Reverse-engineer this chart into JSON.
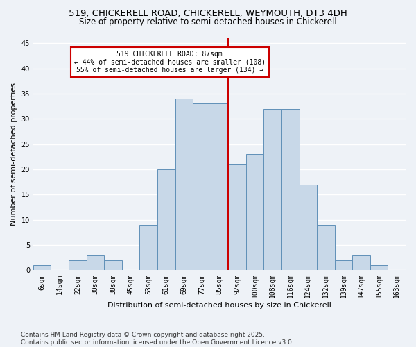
{
  "title1": "519, CHICKERELL ROAD, CHICKERELL, WEYMOUTH, DT3 4DH",
  "title2": "Size of property relative to semi-detached houses in Chickerell",
  "xlabel": "Distribution of semi-detached houses by size in Chickerell",
  "ylabel": "Number of semi-detached properties",
  "bins": [
    "6sqm",
    "14sqm",
    "22sqm",
    "30sqm",
    "38sqm",
    "45sqm",
    "53sqm",
    "61sqm",
    "69sqm",
    "77sqm",
    "85sqm",
    "92sqm",
    "100sqm",
    "108sqm",
    "116sqm",
    "124sqm",
    "132sqm",
    "139sqm",
    "147sqm",
    "155sqm",
    "163sqm"
  ],
  "values": [
    1,
    0,
    2,
    3,
    2,
    0,
    9,
    20,
    34,
    33,
    33,
    21,
    23,
    32,
    32,
    17,
    9,
    2,
    3,
    1,
    0
  ],
  "bar_color": "#c8d8e8",
  "bar_edge_color": "#6090b8",
  "vline_color": "#cc0000",
  "annotation_title": "519 CHICKERELL ROAD: 87sqm",
  "annotation_line1": "← 44% of semi-detached houses are smaller (108)",
  "annotation_line2": "55% of semi-detached houses are larger (134) →",
  "annotation_box_color": "#ffffff",
  "annotation_box_edge": "#cc0000",
  "ylim": [
    0,
    46
  ],
  "yticks": [
    0,
    5,
    10,
    15,
    20,
    25,
    30,
    35,
    40,
    45
  ],
  "footnote": "Contains HM Land Registry data © Crown copyright and database right 2025.\nContains public sector information licensed under the Open Government Licence v3.0.",
  "bg_color": "#eef2f7",
  "grid_color": "#ffffff",
  "title1_fontsize": 9.5,
  "title2_fontsize": 8.5,
  "xlabel_fontsize": 8,
  "ylabel_fontsize": 8,
  "footnote_fontsize": 6.5,
  "tick_fontsize": 7
}
